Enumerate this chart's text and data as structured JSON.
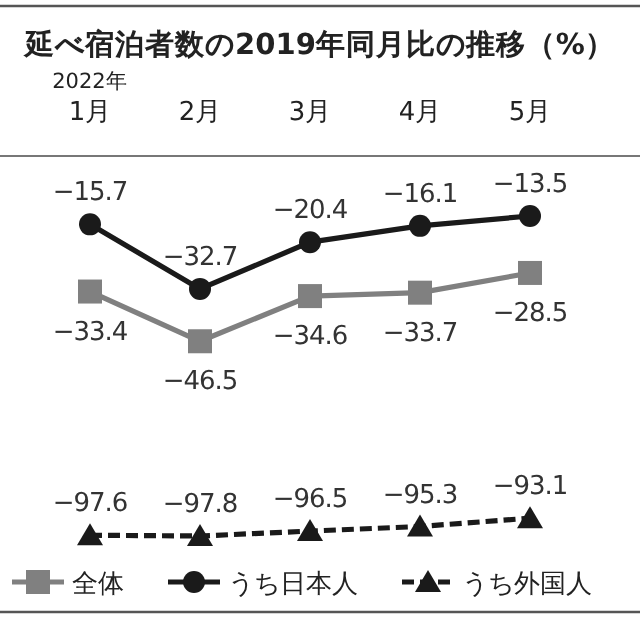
{
  "chart_data": {
    "type": "line",
    "title": "延べ宿泊者数の2019年同月比の推移（%）",
    "categories": [
      "1月",
      "2月",
      "3月",
      "4月",
      "5月"
    ],
    "annotations": [
      "2022年"
    ],
    "data_labels": true,
    "legend": "bottom",
    "grid": false,
    "series": [
      {
        "name": "全体",
        "color": "#808080",
        "marker": "square",
        "line_style": "solid",
        "values": [
          -33.4,
          -46.5,
          -34.6,
          -33.7,
          -28.5
        ]
      },
      {
        "name": "うち日本人",
        "color": "#1a1a1a",
        "marker": "circle",
        "line_style": "solid",
        "values": [
          -15.7,
          -32.7,
          -20.4,
          -16.1,
          -13.5
        ]
      },
      {
        "name": "うち外国人",
        "color": "#1a1a1a",
        "marker": "triangle",
        "line_style": "dashed",
        "values": [
          -97.6,
          -97.8,
          -96.5,
          -95.3,
          -93.1
        ]
      }
    ]
  }
}
